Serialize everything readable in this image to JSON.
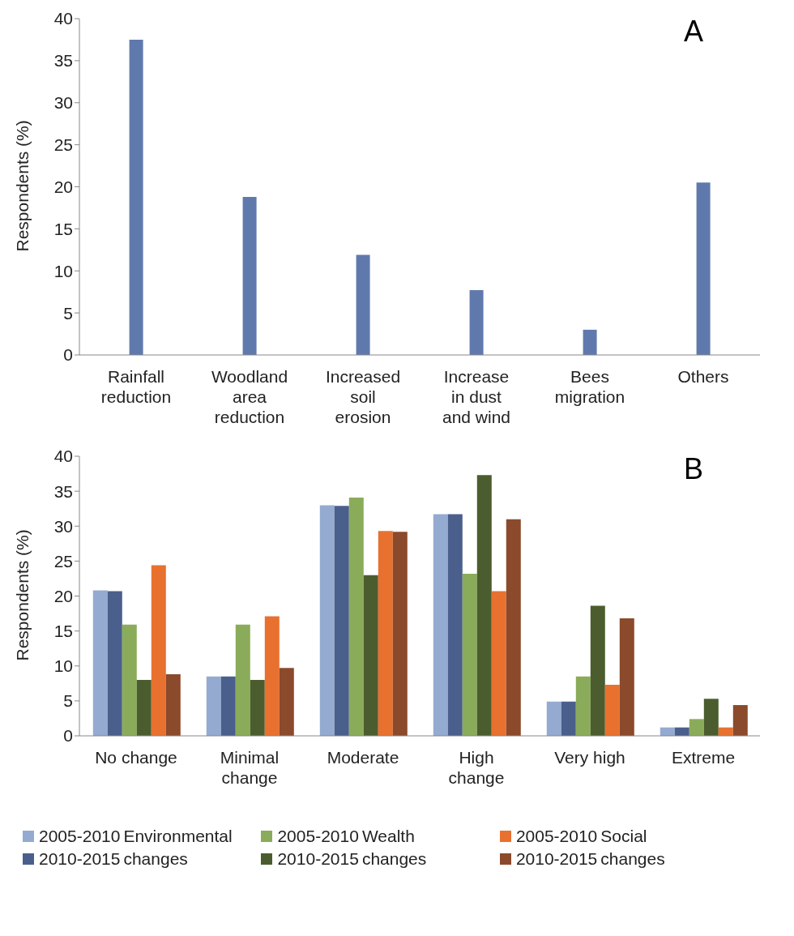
{
  "chart_data": [
    {
      "type": "bar",
      "title": "A",
      "ylabel": "Respondents (%)",
      "categories": [
        "Rainfall reduction",
        "Woodland area reduction",
        "Increased soil erosion",
        "Increase in dust and wind",
        "Bees migration",
        "Others"
      ],
      "values": [
        37.5,
        18.8,
        11.9,
        7.7,
        3.0,
        20.5
      ],
      "color": "#6079ad",
      "ylim": [
        0,
        40
      ],
      "yticks": [
        0,
        5,
        10,
        15,
        20,
        25,
        30,
        35,
        40
      ],
      "grid": false,
      "legend": false
    },
    {
      "type": "bar",
      "title": "B",
      "ylabel": "Respondents (%)",
      "categories": [
        "No change",
        "Minimal change",
        "Moderate",
        "High change",
        "Very high",
        "Extreme"
      ],
      "series": [
        {
          "name": "2005-2010",
          "color": "#95aad0",
          "values": [
            20.8,
            8.5,
            33.0,
            31.7,
            4.9,
            1.2
          ]
        },
        {
          "name": "2010-2015",
          "color": "#4a5f8c",
          "values": [
            20.7,
            8.5,
            32.9,
            31.7,
            4.9,
            1.2
          ]
        },
        {
          "name": "2005-2010",
          "color": "#8aac5a",
          "values": [
            15.9,
            15.9,
            34.1,
            23.2,
            8.5,
            2.4
          ]
        },
        {
          "name": "2010-2015",
          "color": "#4b5d2e",
          "values": [
            8.0,
            8.0,
            23.0,
            37.3,
            18.6,
            5.3
          ]
        },
        {
          "name": "2005-2010",
          "color": "#e8712f",
          "values": [
            24.4,
            17.1,
            29.3,
            20.7,
            7.3,
            1.2
          ]
        },
        {
          "name": "2010-2015",
          "color": "#8b4a2b",
          "values": [
            8.8,
            9.7,
            29.2,
            31.0,
            16.8,
            4.4
          ]
        }
      ],
      "annotations": [
        "Environmental changes",
        "Wealth changes",
        "Social changes"
      ],
      "ylim": [
        0,
        40
      ],
      "yticks": [
        0,
        5,
        10,
        15,
        20,
        25,
        30,
        35,
        40
      ],
      "grid": false,
      "legend": "bottom"
    }
  ]
}
